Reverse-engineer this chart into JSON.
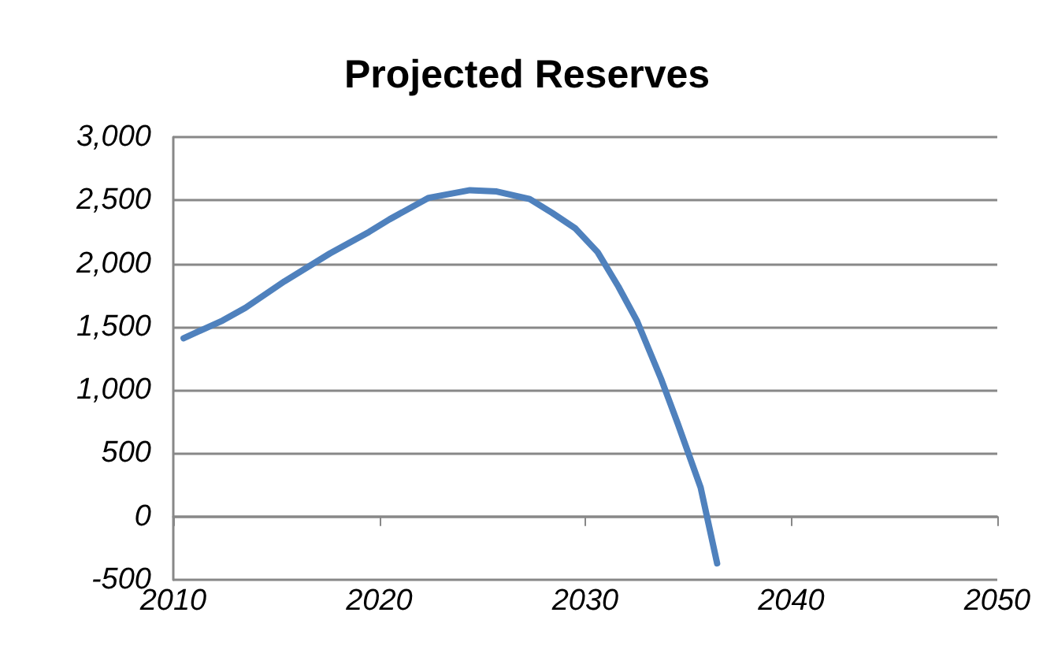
{
  "chart_data": {
    "type": "line",
    "title": "Projected Reserves",
    "x": [
      2010.5,
      2012.4,
      2013.5,
      2015.4,
      2017.6,
      2019.5,
      2020.5,
      2022.4,
      2024.4,
      2025.7,
      2027.3,
      2028.4,
      2029.5,
      2030.6,
      2031.6,
      2032.5,
      2033.7,
      2034.5,
      2035.6,
      2036.4
    ],
    "series": [
      {
        "color": "#4f81bd",
        "values": [
          1410,
          1550,
          1650,
          1860,
          2080,
          2250,
          2350,
          2520,
          2580,
          2570,
          2510,
          2400,
          2280,
          2090,
          1820,
          1550,
          1080,
          730,
          230,
          -370
        ]
      }
    ],
    "xlim": [
      2010,
      2050
    ],
    "xticks": [
      2010,
      2020,
      2030,
      2040,
      2050
    ],
    "ylim": [
      -500,
      3000
    ],
    "yticks": [
      {
        "value": -500,
        "label": "-500"
      },
      {
        "value": 0,
        "label": "0"
      },
      {
        "value": 500,
        "label": "500"
      },
      {
        "value": 1000,
        "label": "1,000"
      },
      {
        "value": 1500,
        "label": "1,500"
      },
      {
        "value": 2000,
        "label": "2,000"
      },
      {
        "value": 2500,
        "label": "2,500"
      },
      {
        "value": 3000,
        "label": "3,000"
      }
    ],
    "grid": "y",
    "marker": "none",
    "line_style": "solid"
  }
}
